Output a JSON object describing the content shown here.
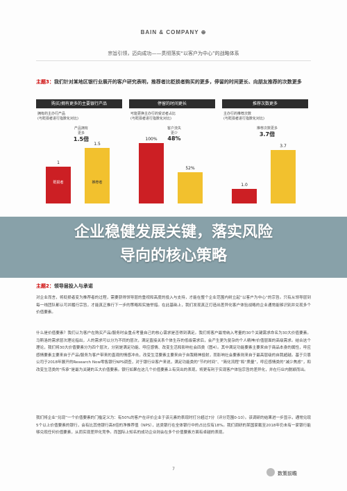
{
  "header": {
    "brand": "BAIN & COMPANY ⊕",
    "subtitle": "宗旨引领，迈向成功——贯彻落实“以客户为中心”的战略体系"
  },
  "figure": {
    "label": "主题3：",
    "title": "我们针对某地区银行业展开的客户研究表明，推荐者比贬损者购买的更多，停留的时间更长、向朋友推荐的次数更多"
  },
  "panels": [
    {
      "head": "购买/拥有更多的主要银行产品",
      "desc": "拥有的主办行产品\n(与贬损者进行指数化对比)",
      "callout_label": "产品拥有\n更多",
      "callout_value": "1.5倍",
      "bars": [
        {
          "label": "贬损者",
          "value": "1",
          "num": 1,
          "color": "#cc1f24"
        },
        {
          "label": "推荐者",
          "value": "1.5",
          "num": 1.5,
          "color": "#f2c12e"
        }
      ],
      "ymax": 1.8
    },
    {
      "head": "停留的时间更长",
      "desc": "可能更换主办行的受访者占比\n(与贬损者进行指数化对比)",
      "callout_label": "客户流失\n更少",
      "callout_value": "48%",
      "bars": [
        {
          "label": "",
          "value": "100%",
          "num": 100,
          "color": "#cc1f24"
        },
        {
          "label": "",
          "value": "52%",
          "num": 52,
          "color": "#f2c12e"
        }
      ],
      "ymax": 110
    },
    {
      "head": "推荐次数更多",
      "desc": "主办行的推荐次数\n(与贬损者进行指数化对比)",
      "callout_label": "推荐次数更多",
      "callout_value": "3.7倍",
      "bars": [
        {
          "label": "",
          "value": "1.0",
          "num": 1.0,
          "color": "#cc1f24"
        },
        {
          "label": "",
          "value": "3.7",
          "num": 3.7,
          "color": "#f2c12e"
        }
      ],
      "ymax": 4.6
    }
  ],
  "overlay": {
    "line1": "企业稳健发展关键，落实风险",
    "line2": "导向的核心策略"
  },
  "theme": {
    "label": "主题2：",
    "title": "领导层投入与承诺"
  },
  "paragraphs": [
    "对企业而言，将贬损者变为推荐者的过程，需要获得领导层的重视和高度的投入与支持，才能在整个企业范围内树立起“以客户为中心”的宗旨。只有从领导层到每一线团队都认可并履行宗旨，才能真正推行下一步的策略和实施举措。在此基础上，我们发现真正打造出差异化客户体验战略的企业通常能够识别并兑现多个价值要素。",
    "什么是价值要素？我们认为客户在购买产品/服务时会重点考量自己的核心需求是否得到满足。我们将客户最常纳入考量的30个关键需求命名为30大价值要素。马斯洛的需求层次理论指出，人的需求可以分为不同的层次，满足直接关系个体生存的低级需求后，会产生更为复杂的个人精神/价值层面的高级需求。结合这个理论，我们将30大价值要素分为四个层次，分别是满足功能、呼应感情、改变生活和影响社会四类（图4）。其中满足功能要素主要来自于商品本身的属性，呼应感情要素主要来自于产品/服务为客户带来的直观的情感冲击，改变生活要素主要来自于自我精神投射，而影响社会要素则来自于最高层级的自我超越。基于贝恩公司于2018年展开的Research Now零售银行NPS调查，对于银行业客户来说，满足功能类的“节约时间”、“简化流程”和“质量”，呼应感情类的“减少焦虑”，和改变生活类的“传承”是最为关键的五大价值要素。银行如果在这几个价值要素上有突出的表现，将更有利于实现客户体验宗旨的差异化，并在行业内脱颖而出。",
    "我们将企业“兑现”一个价值要素的门槛定义为：有50%的客户在评价企业于该元素的表现时打分超过7分（评分范围0-10）。该调研的结果进一步显示，通常兑现5个以上价值要素的银行，会有比其他银行高8倍的净推荐值（NPS），这类银行在全体银行中的占比仅有18%。我们调研的某国家截至2018年仍未有一家银行能够兑现任何价值要素，从而实现差异化竞争。而国际上知名的成功企业则会在多个价值要素方面有卓越的表现。"
  ],
  "page_number": "7",
  "watermark": "数策前瞻"
}
